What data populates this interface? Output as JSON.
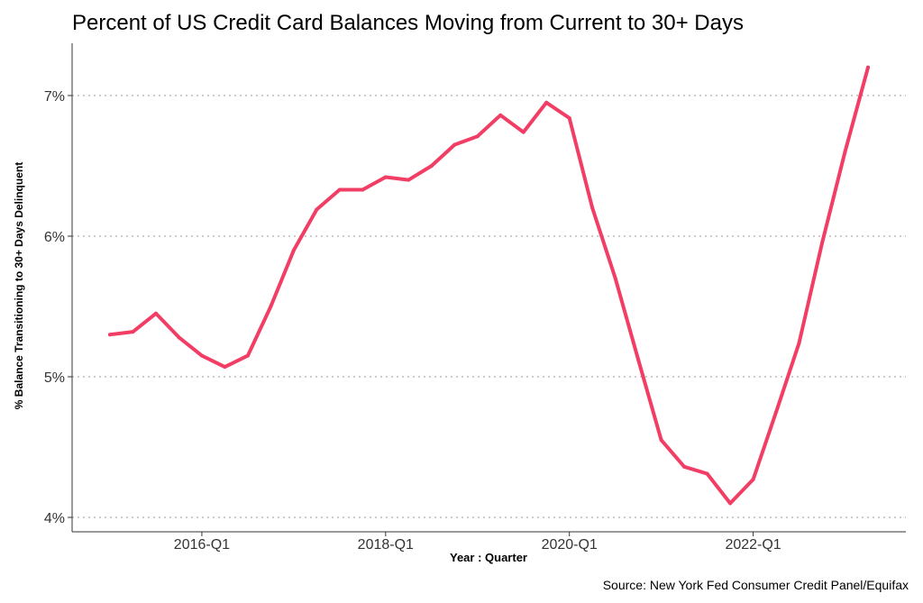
{
  "chart_data": {
    "type": "line",
    "title": "Percent of US Credit Card Balances Moving from Current to 30+ Days",
    "xlabel": "Year : Quarter",
    "ylabel": "% Balance Transitioning to 30+ Days Delinquent",
    "source": "Source: New York Fed Consumer Credit Panel/Equifax",
    "x_tick_labels": [
      "2016-Q1",
      "2018-Q1",
      "2020-Q1",
      "2022-Q1"
    ],
    "y_tick_labels": [
      "4%",
      "5%",
      "6%",
      "7%"
    ],
    "ylim": [
      4,
      7.3
    ],
    "grid": "horizontal dotted",
    "line_color": "#f23d64",
    "x": [
      "2015-Q1",
      "2015-Q2",
      "2015-Q3",
      "2015-Q4",
      "2016-Q1",
      "2016-Q2",
      "2016-Q3",
      "2016-Q4",
      "2017-Q1",
      "2017-Q2",
      "2017-Q3",
      "2017-Q4",
      "2018-Q1",
      "2018-Q2",
      "2018-Q3",
      "2018-Q4",
      "2019-Q1",
      "2019-Q2",
      "2019-Q3",
      "2019-Q4",
      "2020-Q1",
      "2020-Q2",
      "2020-Q3",
      "2020-Q4",
      "2021-Q1",
      "2021-Q2",
      "2021-Q3",
      "2021-Q4",
      "2022-Q1",
      "2022-Q2",
      "2022-Q3",
      "2022-Q4",
      "2023-Q1",
      "2023-Q2"
    ],
    "series": [
      {
        "values": [
          5.3,
          5.32,
          5.45,
          5.28,
          5.15,
          5.07,
          5.15,
          5.5,
          5.9,
          6.19,
          6.33,
          6.33,
          6.42,
          6.4,
          6.5,
          6.65,
          6.71,
          6.86,
          6.74,
          6.95,
          6.84,
          6.2,
          5.7,
          5.12,
          4.55,
          4.36,
          4.31,
          4.1,
          4.27,
          4.75,
          5.24,
          5.95,
          6.6,
          7.2
        ]
      }
    ]
  }
}
